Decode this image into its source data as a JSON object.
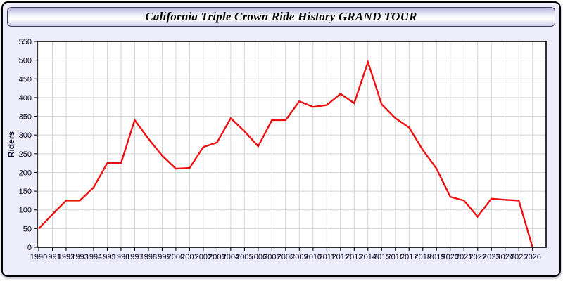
{
  "page": {
    "title": "California Triple Crown Ride History GRAND TOUR"
  },
  "colors": {
    "frame_background": "#ececfa",
    "plot_background": "#ffffff",
    "gridline": "#d4d4d4",
    "axis": "#000000",
    "line": "#ee1111",
    "label_text": "#0b0b28"
  },
  "chart_data": {
    "type": "line",
    "title": "California Triple Crown Ride History GRAND TOUR",
    "xlabel": "",
    "ylabel": "Riders",
    "ylim": [
      0,
      550
    ],
    "ytick_step": 50,
    "grid": true,
    "legend_position": "none",
    "x": [
      1990,
      1991,
      1992,
      1993,
      1994,
      1995,
      1996,
      1997,
      1998,
      1999,
      2000,
      2001,
      2002,
      2003,
      2004,
      2005,
      2006,
      2007,
      2008,
      2009,
      2010,
      2011,
      2012,
      2013,
      2014,
      2015,
      2016,
      2017,
      2018,
      2019,
      2020,
      2021,
      2022,
      2023,
      2024,
      2025,
      2026
    ],
    "series": [
      {
        "name": "Riders",
        "color": "#ee1111",
        "values": [
          50,
          88,
          125,
          125,
          160,
          225,
          225,
          340,
          290,
          245,
          210,
          212,
          268,
          280,
          345,
          310,
          270,
          340,
          340,
          390,
          375,
          380,
          410,
          385,
          495,
          382,
          345,
          320,
          260,
          210,
          135,
          125,
          82,
          130,
          127,
          125,
          0
        ]
      }
    ]
  }
}
